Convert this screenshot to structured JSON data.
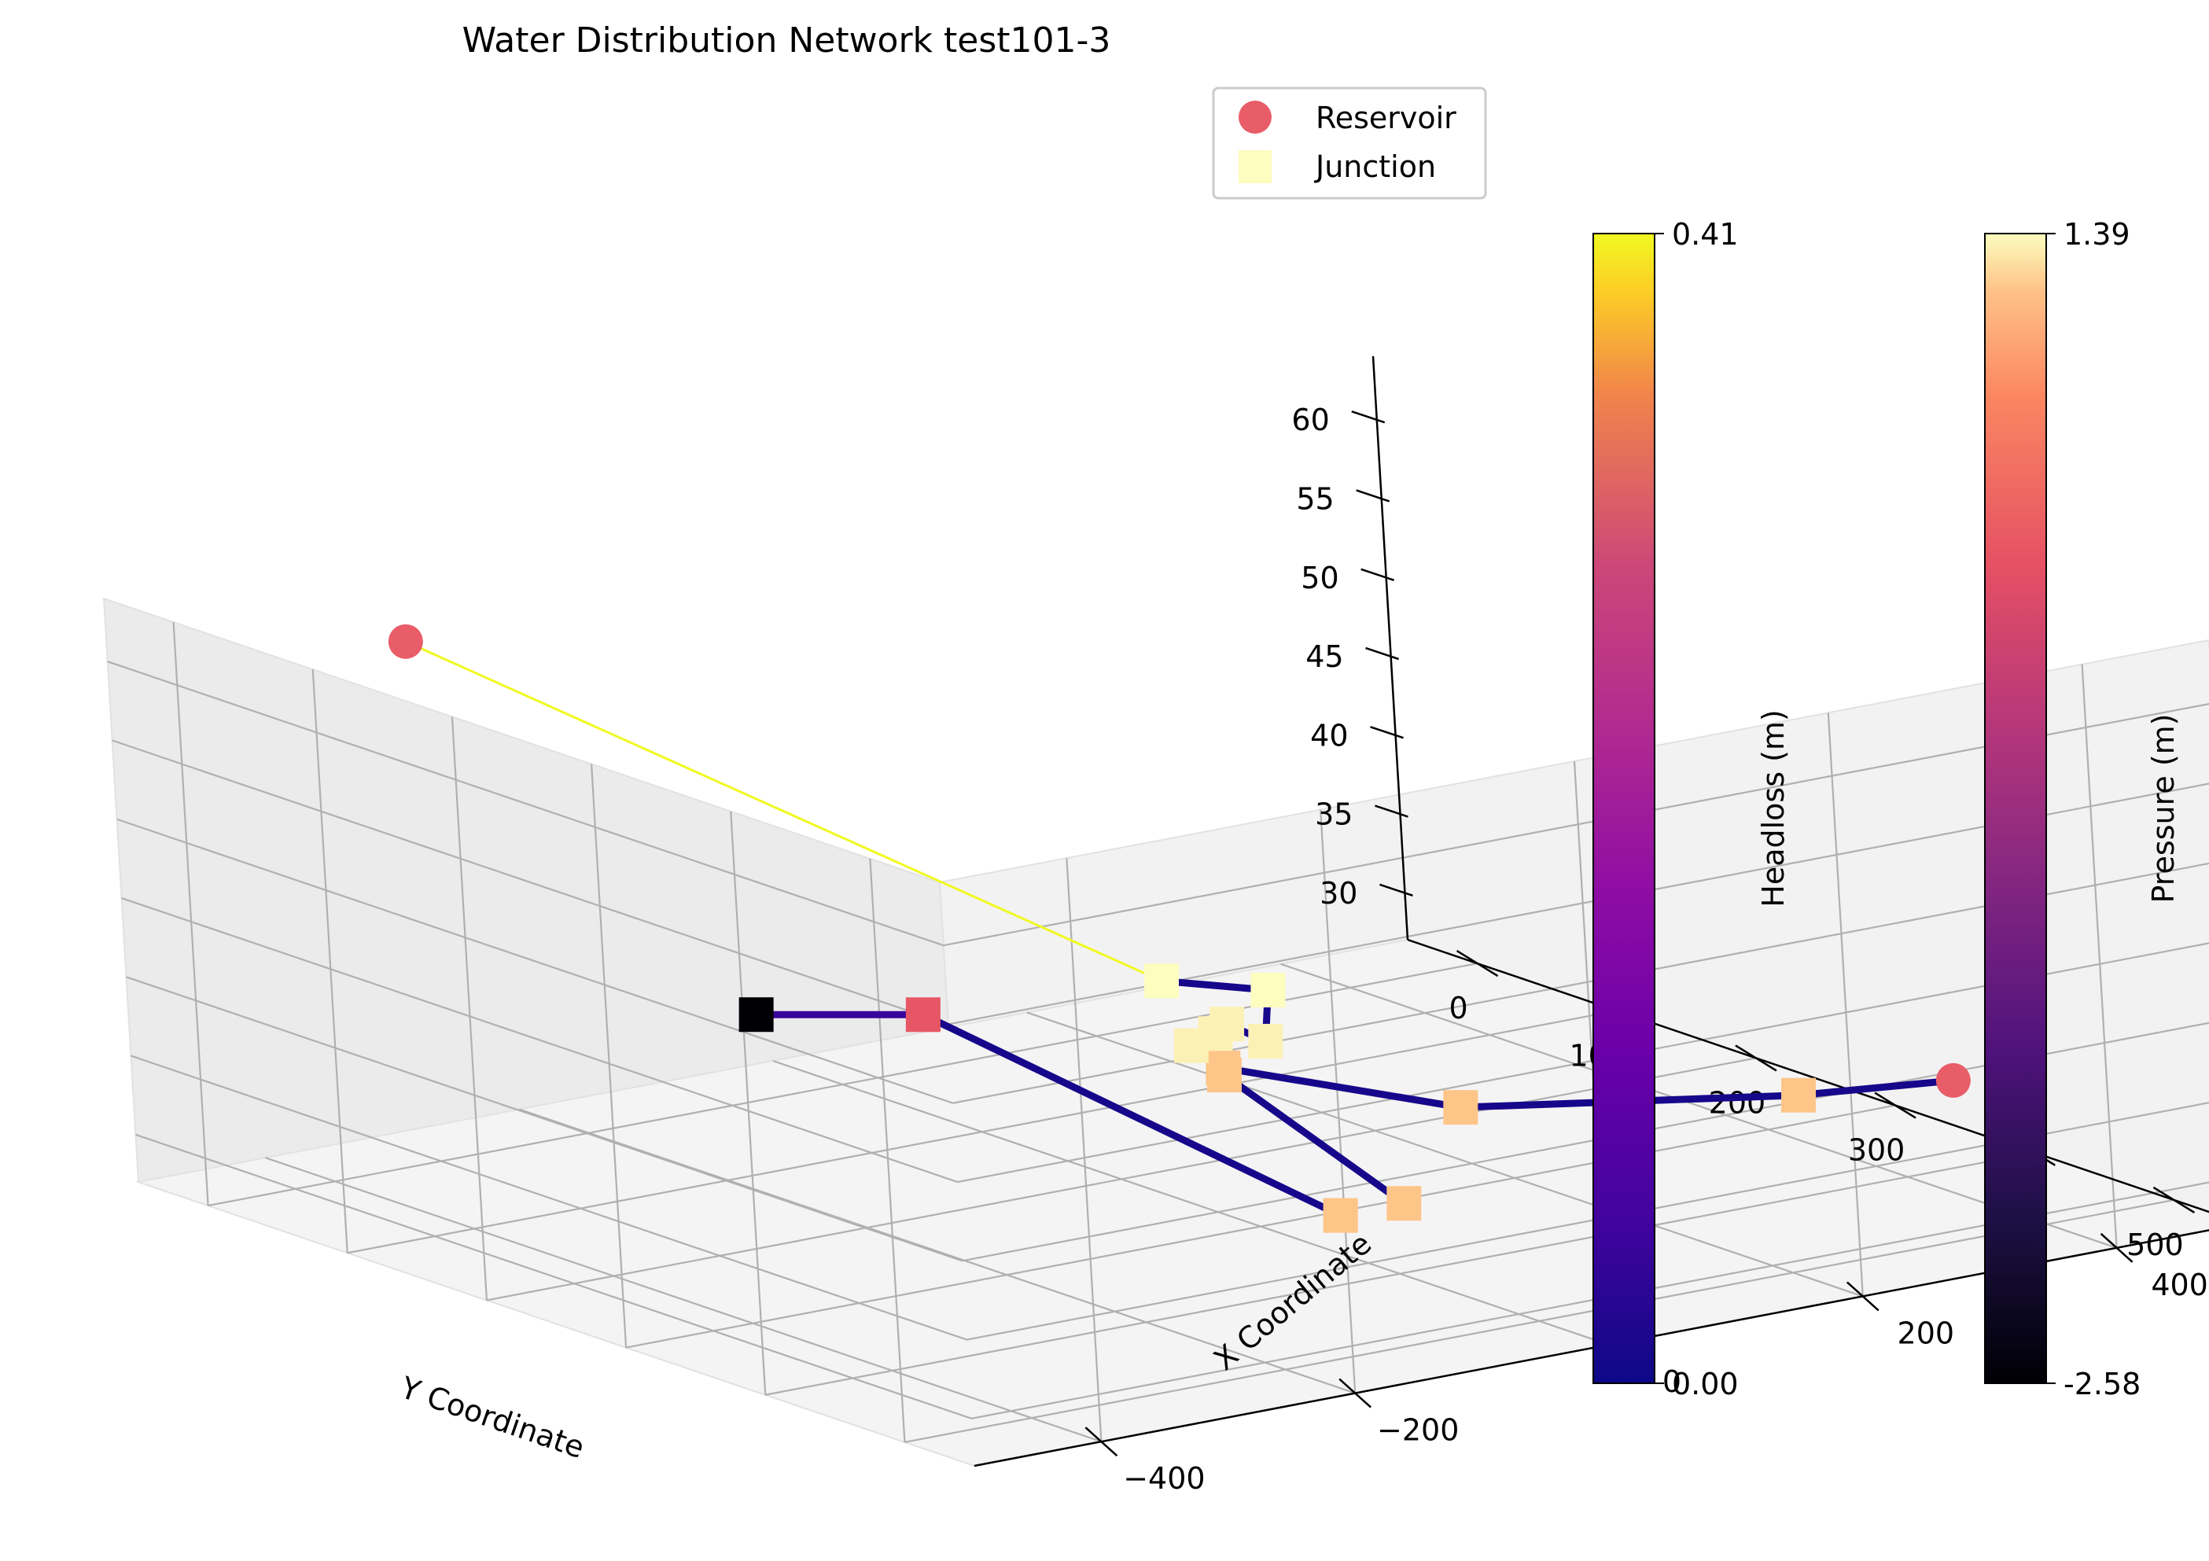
{
  "chart_data": {
    "type": "scatter",
    "title": "Water Distribution Network test101-3",
    "xlabel": "X Coordinate",
    "ylabel": "Y Coordinate",
    "zlabel": "",
    "x_ticks": [
      -400,
      -200,
      0,
      200,
      400
    ],
    "y_ticks": [
      0,
      100,
      200,
      300,
      400,
      500
    ],
    "z_ticks": [
      30,
      35,
      40,
      45,
      50,
      55,
      60
    ],
    "legend": {
      "placement": "top-right",
      "items": [
        {
          "label": "Reservoir",
          "marker": "circle",
          "color": "#e85d68"
        },
        {
          "label": "Junction",
          "marker": "square",
          "color": "#fcfdbf"
        }
      ]
    },
    "colorbars": [
      {
        "label": "Headloss (m)",
        "min": "0.00",
        "max": "0.41",
        "colormap": "plasma"
      },
      {
        "label": "Pressure (m)",
        "min": "-2.58",
        "max": "1.39",
        "colormap": "magma"
      }
    ],
    "reservoirs": [
      {
        "x": -320,
        "y": 0,
        "z": 60
      },
      {
        "x": 440,
        "y": 400,
        "z": 32.5
      }
    ],
    "junctions": [
      {
        "x": -330,
        "y": 250,
        "z": 44,
        "pressure": -2.58
      },
      {
        "x": -200,
        "y": 250,
        "z": 42,
        "pressure": 0.3
      },
      {
        "x": -150,
        "y": 500,
        "z": 36,
        "pressure": 1.2
      },
      {
        "x": -100,
        "y": 500,
        "z": 36,
        "pressure": 1.2
      },
      {
        "x": 0,
        "y": 280,
        "z": 36,
        "pressure": 1.2
      },
      {
        "x": 10,
        "y": 270,
        "z": 36,
        "pressure": 1.2
      },
      {
        "x": 140,
        "y": 320,
        "z": 33,
        "pressure": 1.2
      },
      {
        "x": 340,
        "y": 380,
        "z": 32.5,
        "pressure": 1.2
      },
      {
        "x": 50,
        "y": 210,
        "z": 35,
        "pressure": 1.35
      },
      {
        "x": 80,
        "y": 200,
        "z": 35,
        "pressure": 1.35
      },
      {
        "x": 100,
        "y": 190,
        "z": 35,
        "pressure": 1.35
      },
      {
        "x": 140,
        "y": 180,
        "z": 33,
        "pressure": 1.35
      },
      {
        "x": 200,
        "y": 50,
        "z": 32,
        "pressure": 1.39
      },
      {
        "x": 240,
        "y": 90,
        "z": 32,
        "pressure": 1.39
      }
    ],
    "pipes": [
      {
        "from": "r0",
        "to": "j12",
        "headloss": 0.41
      },
      {
        "from": "j12",
        "to": "j13",
        "headloss": 0.01
      },
      {
        "from": "j13",
        "to": "j11",
        "headloss": 0.01
      },
      {
        "from": "j11",
        "to": "j10",
        "headloss": 0.01
      },
      {
        "from": "j10",
        "to": "j9",
        "headloss": 0.01
      },
      {
        "from": "j9",
        "to": "j8",
        "headloss": 0.01
      },
      {
        "from": "j8",
        "to": "j5",
        "headloss": 0.01
      },
      {
        "from": "j5",
        "to": "j4",
        "headloss": 0.01
      },
      {
        "from": "j4",
        "to": "j3",
        "headloss": 0.01
      },
      {
        "from": "j2",
        "to": "j1",
        "headloss": 0.01
      },
      {
        "from": "j1",
        "to": "j0",
        "headloss": 0.05
      },
      {
        "from": "j5",
        "to": "j6",
        "headloss": 0.01
      },
      {
        "from": "j6",
        "to": "j7",
        "headloss": 0.01
      },
      {
        "from": "j7",
        "to": "r1",
        "headloss": 0.01
      }
    ]
  }
}
